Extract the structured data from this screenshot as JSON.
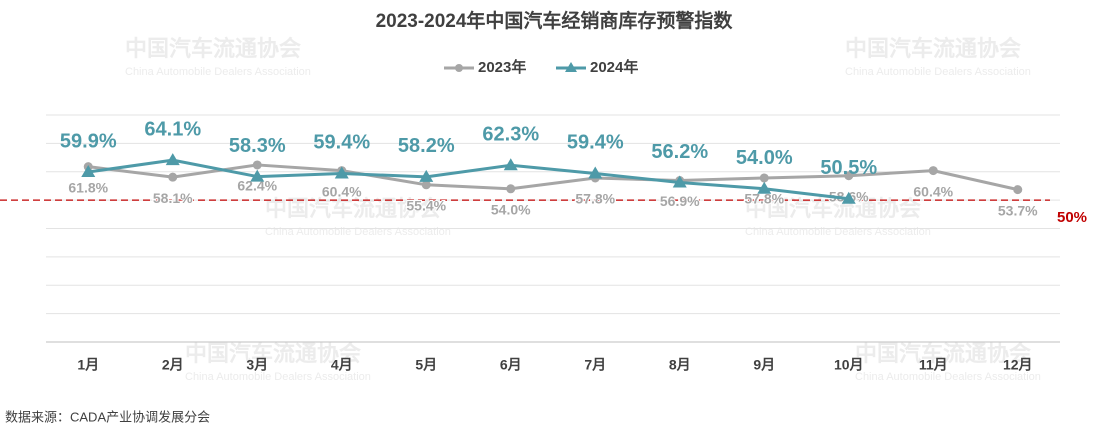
{
  "chart_data": {
    "type": "line",
    "title": "2023-2024年中国汽车经销商库存预警指数",
    "categories": [
      "1月",
      "2月",
      "3月",
      "4月",
      "5月",
      "6月",
      "7月",
      "8月",
      "9月",
      "10月",
      "11月",
      "12月"
    ],
    "series": [
      {
        "name": "2023年",
        "color": "#a6a6a6",
        "marker": "circle",
        "values": [
          61.8,
          58.1,
          62.4,
          60.4,
          55.4,
          54.0,
          57.8,
          56.9,
          57.8,
          58.6,
          60.4,
          53.7
        ],
        "value_labels": [
          "61.8%",
          "58.1%",
          "62.4%",
          "60.4%",
          "55.4%",
          "54.0%",
          "57.8%",
          "56.9%",
          "57.8%",
          "58.6%",
          "60.4%",
          "53.7%"
        ]
      },
      {
        "name": "2024年",
        "color": "#4e9aa8",
        "marker": "triangle",
        "values": [
          59.9,
          64.1,
          58.3,
          59.4,
          58.2,
          62.3,
          59.4,
          56.2,
          54.0,
          50.5,
          null,
          null
        ],
        "value_labels": [
          "59.9%",
          "64.1%",
          "58.3%",
          "59.4%",
          "58.2%",
          "62.3%",
          "59.4%",
          "56.2%",
          "54.0%",
          "50.5%",
          null,
          null
        ]
      }
    ],
    "ylim": [
      0,
      80
    ],
    "yticks": [
      0,
      10,
      20,
      30,
      40,
      50,
      60,
      70,
      80
    ],
    "grid": true,
    "reference_line": {
      "value": 50,
      "label": "50%",
      "color": "#c00000"
    },
    "legend": "top",
    "source": "数据来源：CADA产业协调发展分会",
    "watermark": [
      "中国汽车流通协会",
      "China Automobile Dealers Association"
    ]
  }
}
